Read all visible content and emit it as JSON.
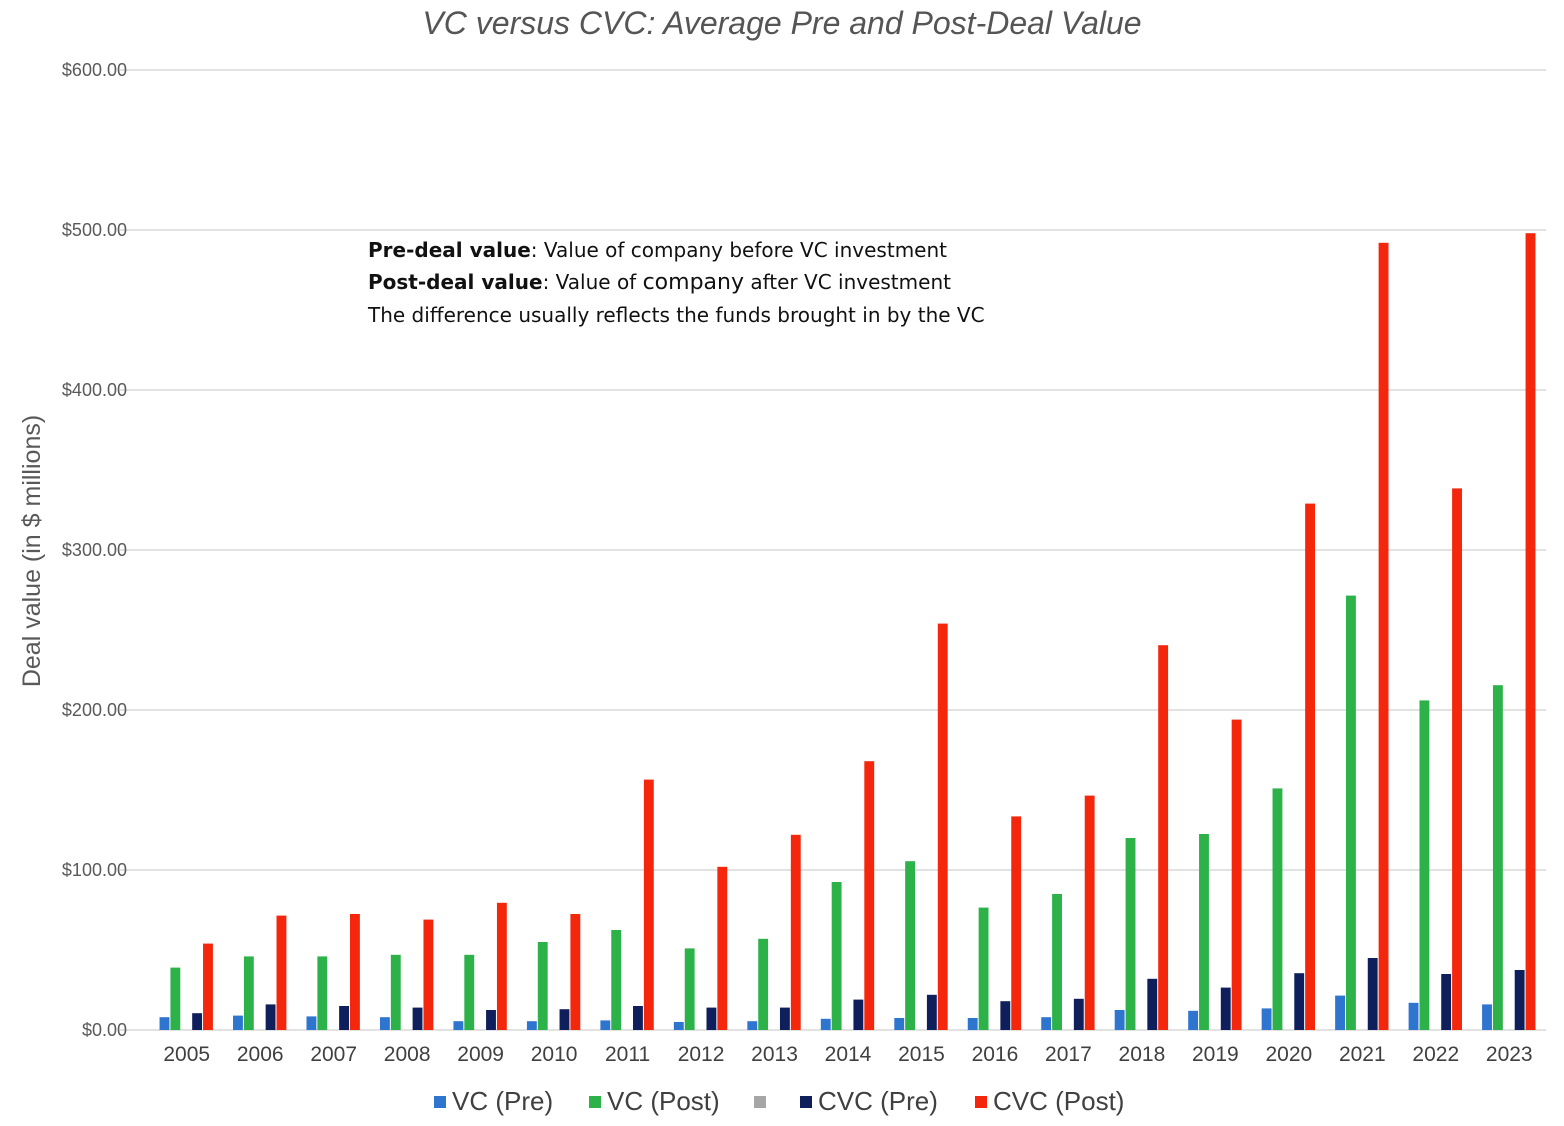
{
  "chart_data": {
    "type": "bar",
    "title": "VC versus CVC: Average Pre and Post-Deal Value",
    "ylabel": "Deal value (in $ millions)",
    "xlabel": "",
    "ylim": [
      0,
      600
    ],
    "yticks": [
      0,
      100,
      200,
      300,
      400,
      500,
      600
    ],
    "ytick_labels": [
      "$0.00",
      "$100.00",
      "$200.00",
      "$300.00",
      "$400.00",
      "$500.00",
      "$600.00"
    ],
    "grid": true,
    "legend_position": "bottom",
    "categories": [
      "2005",
      "2006",
      "2007",
      "2008",
      "2009",
      "2010",
      "2011",
      "2012",
      "2013",
      "2014",
      "2015",
      "2016",
      "2017",
      "2018",
      "2019",
      "2020",
      "2021",
      "2022",
      "2023"
    ],
    "series": [
      {
        "name": "VC (Pre)",
        "color": "#2E75D0",
        "values": [
          8,
          9,
          8.5,
          8,
          5.5,
          5.5,
          6,
          5,
          5.5,
          7,
          7.5,
          7.5,
          8,
          12.5,
          12,
          13.5,
          21.5,
          17,
          16
        ]
      },
      {
        "name": "VC (Post)",
        "color": "#2DB24A",
        "values": [
          39,
          46,
          46,
          47,
          47,
          55,
          62.5,
          51,
          57,
          92.5,
          105.5,
          76.5,
          85,
          120,
          122.5,
          151,
          271.5,
          206,
          215.5
        ]
      },
      {
        "name": "",
        "color": "#A6A6A6",
        "values": [
          0,
          0,
          0,
          0,
          0,
          0,
          0,
          0,
          0,
          0,
          0,
          0,
          0,
          0,
          0,
          0,
          0,
          0,
          0
        ]
      },
      {
        "name": "CVC (Pre)",
        "color": "#0F1F5C",
        "values": [
          10.5,
          16,
          15,
          14,
          12.5,
          13,
          15,
          14,
          14,
          19,
          22,
          18,
          19.5,
          32,
          26.5,
          35.5,
          45,
          35,
          37.5
        ]
      },
      {
        "name": "CVC (Post)",
        "color": "#F4260C",
        "values": [
          54,
          71.5,
          72.5,
          69,
          79.5,
          72.5,
          156.5,
          102,
          122,
          168,
          254,
          133.5,
          146.5,
          240.5,
          194,
          329,
          492,
          338.5,
          498
        ]
      }
    ],
    "annotation": {
      "line1_bold": "Pre-deal value",
      "line1_rest": ": Value of company before VC investment",
      "line2_bold": "Post-deal value",
      "line2_mid": ": Value of ",
      "line2_company": "company",
      "line2_rest": " after VC investment",
      "line3": "The difference usually reflects the funds brought in by the VC"
    }
  }
}
